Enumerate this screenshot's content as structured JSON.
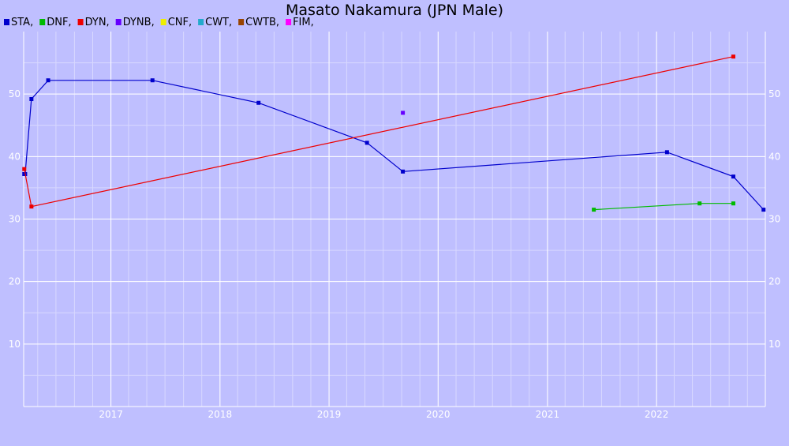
{
  "chart_data": {
    "type": "line",
    "title": "Masato Nakamura (JPN Male)",
    "xlabel": "",
    "ylabel": "",
    "xlim": [
      "2016-03-15",
      "2022-12-31"
    ],
    "ylim": [
      0,
      60
    ],
    "x_ticks": [
      "2017",
      "2018",
      "2019",
      "2020",
      "2021",
      "2022"
    ],
    "y_ticks": [
      10,
      20,
      30,
      40,
      50
    ],
    "grid": true,
    "legend_position": "top-left",
    "legend": [
      {
        "label": "STA,",
        "color": "#0000cc"
      },
      {
        "label": "DNF,",
        "color": "#00bb00"
      },
      {
        "label": "DYN,",
        "color": "#ee0000"
      },
      {
        "label": "DYNB,",
        "color": "#6600ff"
      },
      {
        "label": "CNF,",
        "color": "#eeee00"
      },
      {
        "label": "CWT,",
        "color": "#22aacc"
      },
      {
        "label": "CWTB,",
        "color": "#994400"
      },
      {
        "label": "FIM,",
        "color": "#ff00ff"
      }
    ],
    "series": [
      {
        "name": "STA",
        "color": "#0000cc",
        "points": [
          {
            "x": "2016-03-17",
            "y": 37.2
          },
          {
            "x": "2016-03-20",
            "y": 37.2
          },
          {
            "x": "2016-04-10",
            "y": 49.2
          },
          {
            "x": "2016-06-05",
            "y": 52.2
          },
          {
            "x": "2017-05-20",
            "y": 52.2
          },
          {
            "x": "2018-05-10",
            "y": 48.6
          },
          {
            "x": "2019-05-08",
            "y": 42.2
          },
          {
            "x": "2019-09-05",
            "y": 37.6
          },
          {
            "x": "2022-02-05",
            "y": 40.7
          },
          {
            "x": "2022-09-15",
            "y": 36.8
          },
          {
            "x": "2022-12-25",
            "y": 31.5
          }
        ]
      },
      {
        "name": "DNF",
        "color": "#00bb00",
        "points": [
          {
            "x": "2021-06-05",
            "y": 31.5
          },
          {
            "x": "2022-05-25",
            "y": 32.5
          },
          {
            "x": "2022-09-15",
            "y": 32.5
          }
        ]
      },
      {
        "name": "DYN",
        "color": "#ee0000",
        "points": [
          {
            "x": "2016-03-17",
            "y": 38.0
          },
          {
            "x": "2016-04-10",
            "y": 32.0
          },
          {
            "x": "2022-09-15",
            "y": 56.0
          }
        ]
      },
      {
        "name": "DYNB",
        "color": "#6600ff",
        "points": [
          {
            "x": "2019-09-05",
            "y": 47.0
          }
        ]
      }
    ]
  }
}
